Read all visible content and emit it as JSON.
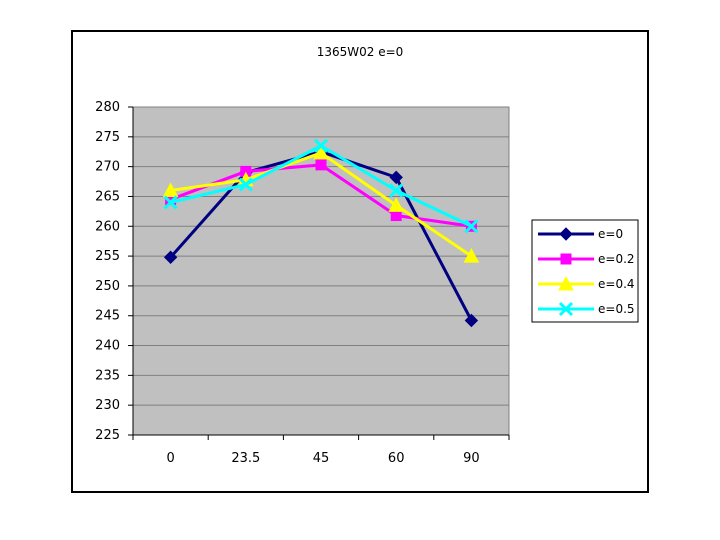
{
  "chart_data": {
    "type": "line",
    "title": "1365W02 e=0",
    "xlabel": "",
    "ylabel": "",
    "categories": [
      "0",
      "23.5",
      "45",
      "60",
      "90"
    ],
    "ylim": [
      225,
      280
    ],
    "yticks": [
      225,
      230,
      235,
      240,
      245,
      250,
      255,
      260,
      265,
      270,
      275,
      280
    ],
    "grid": true,
    "legend_position": "right",
    "plot_background": "#c0c0c0",
    "series": [
      {
        "name": "e=0",
        "values": [
          254.8,
          269.0,
          272.5,
          268.2,
          244.2
        ],
        "color": "#000080",
        "marker": "diamond"
      },
      {
        "name": "e=0.2",
        "values": [
          264.5,
          269.2,
          270.3,
          261.8,
          260.0
        ],
        "color": "#ff00ff",
        "marker": "square"
      },
      {
        "name": "e=0.4",
        "values": [
          266.0,
          267.8,
          272.3,
          263.5,
          255.0
        ],
        "color": "#ffff00",
        "marker": "triangle"
      },
      {
        "name": "e=0.5",
        "values": [
          264.0,
          267.0,
          273.5,
          266.0,
          260.0
        ],
        "color": "#00ffff",
        "marker": "x"
      }
    ]
  }
}
